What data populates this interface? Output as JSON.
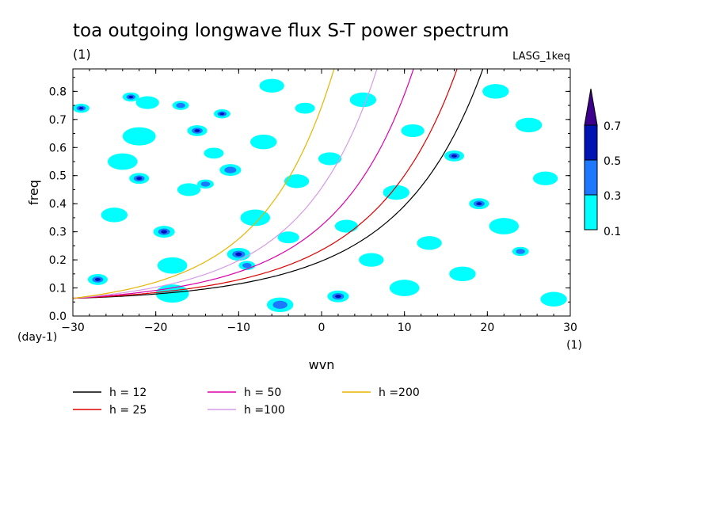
{
  "chart_data": {
    "type": "contour",
    "title": "toa outgoing longwave flux S-T power spectrum",
    "title_unit": "(1)",
    "dataset": "LASG_1keq",
    "xlabel": "wvn",
    "x_unit": "(1)",
    "ylabel": "freq",
    "y_unit": "(day-1)",
    "xlim": [
      -30,
      30
    ],
    "ylim": [
      0,
      0.88
    ],
    "x_ticks": [
      -30,
      -20,
      -10,
      0,
      10,
      20,
      30
    ],
    "x_tick_labels": [
      "−30",
      "−20",
      "−10",
      "0",
      "10",
      "20",
      "30"
    ],
    "y_ticks": [
      0.0,
      0.1,
      0.2,
      0.3,
      0.4,
      0.5,
      0.6,
      0.7,
      0.8
    ],
    "y_tick_labels": [
      "0.0",
      "0.1",
      "0.2",
      "0.3",
      "0.4",
      "0.5",
      "0.6",
      "0.7",
      "0.8"
    ],
    "contour_levels": [
      0.1,
      0.3,
      0.5,
      0.7
    ],
    "contour_level_labels": [
      "0.1",
      "0.3",
      "0.5",
      "0.7"
    ],
    "contour_colors": [
      "#00ffff",
      "#1e78ff",
      "#0014b4",
      "#3c008c"
    ],
    "dispersion_curves": [
      {
        "label": "h = 12",
        "h": 12,
        "color": "#000000"
      },
      {
        "label": "h = 25",
        "h": 25,
        "color": "#dd0000"
      },
      {
        "label": "h = 50",
        "h": 50,
        "color": "#dd00aa"
      },
      {
        "label": "h =100",
        "h": 100,
        "color": "#d69be6"
      },
      {
        "label": "h =200",
        "h": 200,
        "color": "#e8b400"
      }
    ],
    "power_blobs": [
      {
        "x": -29,
        "y": 0.74,
        "r": 1.0,
        "v": 0.5
      },
      {
        "x": -27,
        "y": 0.13,
        "r": 1.2,
        "v": 0.5
      },
      {
        "x": -25,
        "y": 0.36,
        "r": 1.6,
        "v": 0.2
      },
      {
        "x": -24,
        "y": 0.55,
        "r": 1.8,
        "v": 0.2
      },
      {
        "x": -22,
        "y": 0.49,
        "r": 1.2,
        "v": 0.6
      },
      {
        "x": -22,
        "y": 0.64,
        "r": 2.0,
        "v": 0.2
      },
      {
        "x": -23,
        "y": 0.78,
        "r": 1.0,
        "v": 0.6
      },
      {
        "x": -21,
        "y": 0.76,
        "r": 1.4,
        "v": 0.2
      },
      {
        "x": -19,
        "y": 0.3,
        "r": 1.3,
        "v": 0.6
      },
      {
        "x": -18,
        "y": 0.18,
        "r": 1.8,
        "v": 0.2
      },
      {
        "x": -18,
        "y": 0.08,
        "r": 2.0,
        "v": 0.2
      },
      {
        "x": -17,
        "y": 0.75,
        "r": 1.0,
        "v": 0.3
      },
      {
        "x": -16,
        "y": 0.45,
        "r": 1.4,
        "v": 0.2
      },
      {
        "x": -15,
        "y": 0.66,
        "r": 1.2,
        "v": 0.5
      },
      {
        "x": -14,
        "y": 0.47,
        "r": 1.0,
        "v": 0.3
      },
      {
        "x": -13,
        "y": 0.58,
        "r": 1.2,
        "v": 0.2
      },
      {
        "x": -12,
        "y": 0.72,
        "r": 1.0,
        "v": 0.5
      },
      {
        "x": -11,
        "y": 0.52,
        "r": 1.3,
        "v": 0.4
      },
      {
        "x": -10,
        "y": 0.22,
        "r": 1.4,
        "v": 0.6
      },
      {
        "x": -9,
        "y": 0.18,
        "r": 1.0,
        "v": 0.4
      },
      {
        "x": -8,
        "y": 0.35,
        "r": 1.8,
        "v": 0.2
      },
      {
        "x": -7,
        "y": 0.62,
        "r": 1.6,
        "v": 0.2
      },
      {
        "x": -6,
        "y": 0.82,
        "r": 1.5,
        "v": 0.2
      },
      {
        "x": -5,
        "y": 0.04,
        "r": 1.6,
        "v": 0.4
      },
      {
        "x": -4,
        "y": 0.28,
        "r": 1.3,
        "v": 0.2
      },
      {
        "x": -3,
        "y": 0.48,
        "r": 1.5,
        "v": 0.2
      },
      {
        "x": -2,
        "y": 0.74,
        "r": 1.2,
        "v": 0.2
      },
      {
        "x": 1,
        "y": 0.56,
        "r": 1.4,
        "v": 0.2
      },
      {
        "x": 2,
        "y": 0.07,
        "r": 1.3,
        "v": 0.6
      },
      {
        "x": 3,
        "y": 0.32,
        "r": 1.4,
        "v": 0.2
      },
      {
        "x": 5,
        "y": 0.77,
        "r": 1.6,
        "v": 0.2
      },
      {
        "x": 6,
        "y": 0.2,
        "r": 1.5,
        "v": 0.2
      },
      {
        "x": 9,
        "y": 0.44,
        "r": 1.6,
        "v": 0.2
      },
      {
        "x": 10,
        "y": 0.1,
        "r": 1.8,
        "v": 0.2
      },
      {
        "x": 11,
        "y": 0.66,
        "r": 1.4,
        "v": 0.2
      },
      {
        "x": 13,
        "y": 0.26,
        "r": 1.5,
        "v": 0.2
      },
      {
        "x": 16,
        "y": 0.57,
        "r": 1.2,
        "v": 0.5
      },
      {
        "x": 17,
        "y": 0.15,
        "r": 1.6,
        "v": 0.2
      },
      {
        "x": 19,
        "y": 0.4,
        "r": 1.2,
        "v": 0.6
      },
      {
        "x": 21,
        "y": 0.8,
        "r": 1.6,
        "v": 0.2
      },
      {
        "x": 22,
        "y": 0.32,
        "r": 1.8,
        "v": 0.2
      },
      {
        "x": 24,
        "y": 0.23,
        "r": 1.0,
        "v": 0.4
      },
      {
        "x": 25,
        "y": 0.68,
        "r": 1.6,
        "v": 0.2
      },
      {
        "x": 27,
        "y": 0.49,
        "r": 1.5,
        "v": 0.2
      },
      {
        "x": 28,
        "y": 0.06,
        "r": 1.6,
        "v": 0.2
      }
    ]
  }
}
